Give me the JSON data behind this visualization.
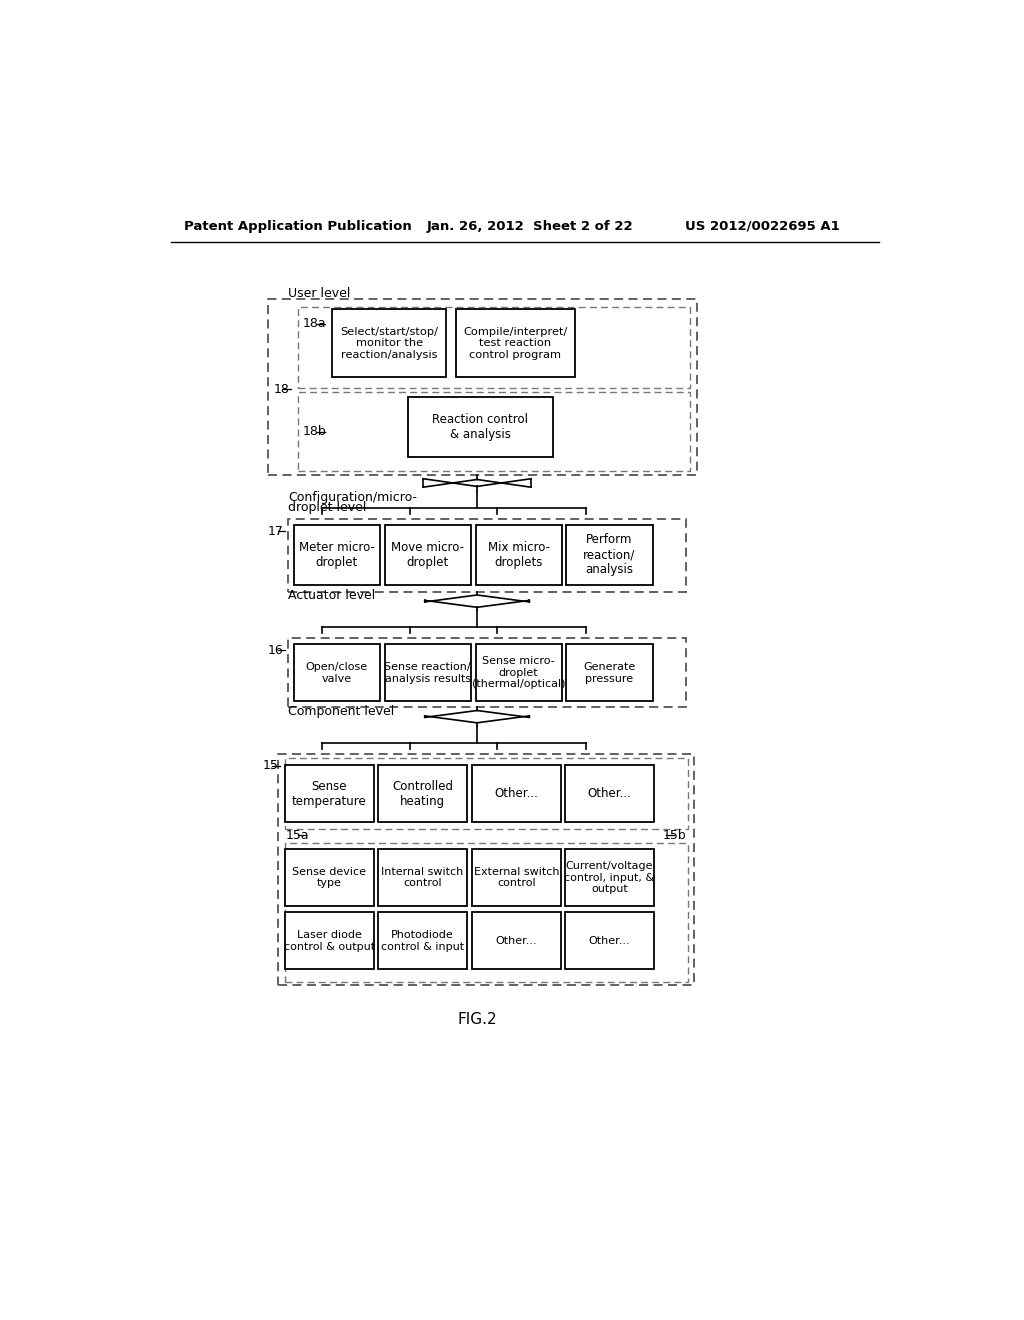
{
  "header_left": "Patent Application Publication",
  "header_mid": "Jan. 26, 2012  Sheet 2 of 22",
  "header_right": "US 2012/0022695 A1",
  "figure_label": "FIG.2",
  "bg_color": "#ffffff"
}
